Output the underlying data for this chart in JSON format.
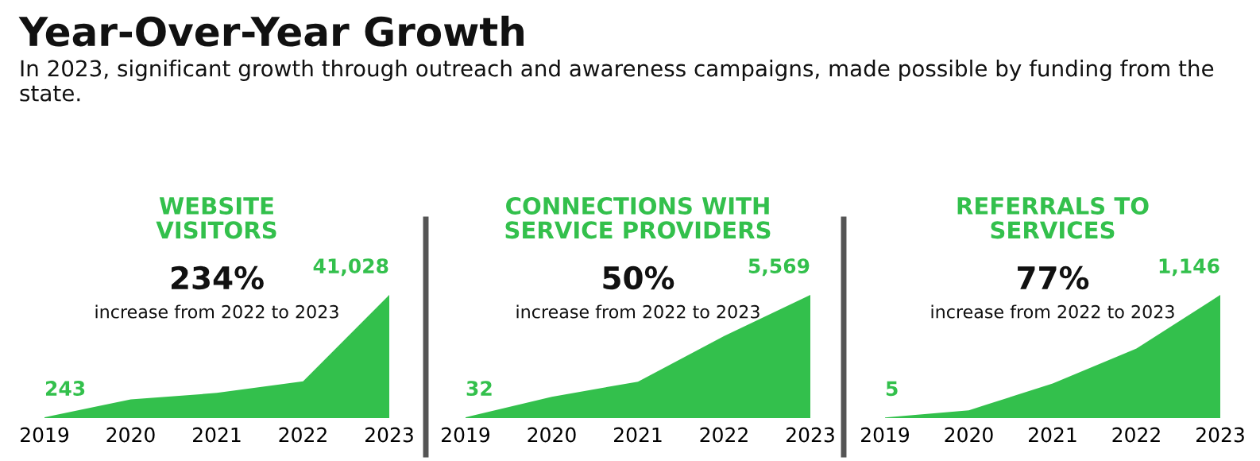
{
  "chart_data": [
    {
      "type": "other",
      "title": "Year-Over-Year Growth",
      "subtitle": "In 2023, significant growth through outreach and awareness campaigns, made possible by funding from the state."
    },
    {
      "type": "area",
      "title": "WEBSITE\nVISITORS",
      "categories": [
        "2019",
        "2020",
        "2021",
        "2022",
        "2023"
      ],
      "series": [
        {
          "color": "#33c04c",
          "values": [
            243,
            6240,
            8380,
            12280,
            41028
          ],
          "value_labels": [
            "243",
            null,
            null,
            null,
            "41,028"
          ]
        }
      ],
      "annotations": [
        "234%",
        "increase from 2022 to 2023"
      ],
      "grid": false,
      "legend": false
    },
    {
      "type": "area",
      "title": "CONNECTIONS WITH\nSERVICE PROVIDERS",
      "categories": [
        "2019",
        "2020",
        "2021",
        "2022",
        "2023"
      ],
      "series": [
        {
          "color": "#33c04c",
          "values": [
            32,
            964,
            1649,
            3713,
            5569
          ],
          "value_labels": [
            "32",
            null,
            null,
            null,
            "5,569"
          ]
        }
      ],
      "annotations": [
        "50%",
        "increase from 2022 to 2023"
      ],
      "grid": false,
      "legend": false
    },
    {
      "type": "area",
      "title": "REFERRALS TO\nSERVICES",
      "categories": [
        "2019",
        "2020",
        "2021",
        "2022",
        "2023"
      ],
      "series": [
        {
          "color": "#33c04c",
          "values": [
            5,
            73,
            322,
            647,
            1146
          ],
          "value_labels": [
            "5",
            null,
            null,
            null,
            "1,146"
          ]
        }
      ],
      "annotations": [
        "77%",
        "increase from 2022 to 2023"
      ],
      "grid": false,
      "legend": false
    }
  ]
}
